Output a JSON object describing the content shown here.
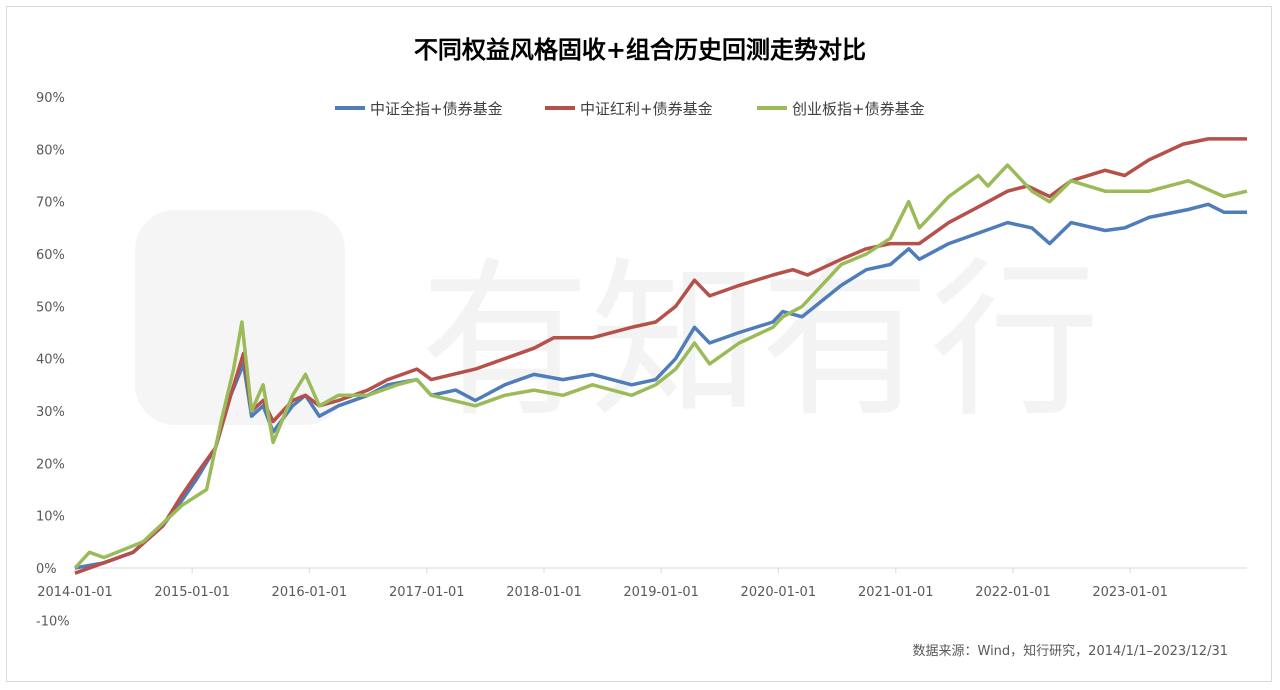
{
  "chart_data": {
    "type": "line",
    "title": "不同权益风格固收+组合历史回测走势对比",
    "xlabel": "",
    "ylabel": "",
    "x_ticks": [
      "2014-01-01",
      "2015-01-01",
      "2016-01-01",
      "2017-01-01",
      "2018-01-01",
      "2019-01-01",
      "2020-01-01",
      "2021-01-01",
      "2022-01-01",
      "2023-01-01"
    ],
    "y_ticks": [
      "-10%",
      "0%",
      "10%",
      "20%",
      "30%",
      "40%",
      "50%",
      "60%",
      "70%",
      "80%",
      "90%"
    ],
    "ylim": [
      -10,
      90
    ],
    "xlim": [
      "2014-01-01",
      "2023-12-31"
    ],
    "grid": false,
    "legend_position": "top",
    "watermark": "有知有行",
    "source_note": "数据来源：Wind，知行研究，2014/1/1–2023/12/31",
    "series": [
      {
        "name": "中证全指+债券基金",
        "color": "#4f7cba",
        "points": [
          [
            "2014-01-01",
            0
          ],
          [
            "2014-04-01",
            1
          ],
          [
            "2014-07-01",
            3
          ],
          [
            "2014-10-01",
            8
          ],
          [
            "2014-12-01",
            13
          ],
          [
            "2015-01-15",
            17
          ],
          [
            "2015-03-15",
            23
          ],
          [
            "2015-05-01",
            33
          ],
          [
            "2015-06-10",
            39
          ],
          [
            "2015-07-05",
            29
          ],
          [
            "2015-08-10",
            31
          ],
          [
            "2015-09-10",
            26
          ],
          [
            "2015-11-10",
            31
          ],
          [
            "2015-12-20",
            33
          ],
          [
            "2016-02-01",
            29
          ],
          [
            "2016-04-01",
            31
          ],
          [
            "2016-07-01",
            33
          ],
          [
            "2016-09-01",
            35
          ],
          [
            "2016-12-01",
            36
          ],
          [
            "2017-01-15",
            33
          ],
          [
            "2017-04-01",
            34
          ],
          [
            "2017-06-01",
            32
          ],
          [
            "2017-09-01",
            35
          ],
          [
            "2017-12-01",
            37
          ],
          [
            "2018-03-01",
            36
          ],
          [
            "2018-06-01",
            37
          ],
          [
            "2018-10-01",
            35
          ],
          [
            "2018-12-15",
            36
          ],
          [
            "2019-02-15",
            40
          ],
          [
            "2019-04-15",
            46
          ],
          [
            "2019-06-01",
            43
          ],
          [
            "2019-09-01",
            45
          ],
          [
            "2019-12-15",
            47
          ],
          [
            "2020-01-15",
            49
          ],
          [
            "2020-03-15",
            48
          ],
          [
            "2020-07-15",
            54
          ],
          [
            "2020-10-01",
            57
          ],
          [
            "2020-12-15",
            58
          ],
          [
            "2021-02-10",
            61
          ],
          [
            "2021-03-15",
            59
          ],
          [
            "2021-06-15",
            62
          ],
          [
            "2021-09-15",
            64
          ],
          [
            "2021-12-15",
            66
          ],
          [
            "2022-03-01",
            65
          ],
          [
            "2022-04-25",
            62
          ],
          [
            "2022-07-01",
            66
          ],
          [
            "2022-10-15",
            64.5
          ],
          [
            "2022-12-15",
            65
          ],
          [
            "2023-03-01",
            67
          ],
          [
            "2023-07-01",
            68.5
          ],
          [
            "2023-09-01",
            69.5
          ],
          [
            "2023-10-20",
            68
          ],
          [
            "2023-12-31",
            68
          ]
        ]
      },
      {
        "name": "中证红利+债券基金",
        "color": "#b5504a",
        "points": [
          [
            "2014-01-01",
            -1
          ],
          [
            "2014-04-01",
            1
          ],
          [
            "2014-07-01",
            3
          ],
          [
            "2014-10-01",
            8
          ],
          [
            "2014-12-01",
            14
          ],
          [
            "2015-01-15",
            18
          ],
          [
            "2015-03-15",
            23
          ],
          [
            "2015-05-01",
            33
          ],
          [
            "2015-06-10",
            41
          ],
          [
            "2015-07-05",
            30
          ],
          [
            "2015-08-10",
            32
          ],
          [
            "2015-09-10",
            28
          ],
          [
            "2015-11-10",
            32
          ],
          [
            "2015-12-20",
            33
          ],
          [
            "2016-02-01",
            31
          ],
          [
            "2016-04-01",
            32
          ],
          [
            "2016-07-01",
            34
          ],
          [
            "2016-09-01",
            36
          ],
          [
            "2016-12-01",
            38
          ],
          [
            "2017-01-15",
            36
          ],
          [
            "2017-06-01",
            38
          ],
          [
            "2017-12-01",
            42
          ],
          [
            "2018-02-01",
            44
          ],
          [
            "2018-06-01",
            44
          ],
          [
            "2018-10-01",
            46
          ],
          [
            "2018-12-15",
            47
          ],
          [
            "2019-02-15",
            50
          ],
          [
            "2019-04-15",
            55
          ],
          [
            "2019-06-01",
            52
          ],
          [
            "2019-09-01",
            54
          ],
          [
            "2019-12-15",
            56
          ],
          [
            "2020-02-15",
            57
          ],
          [
            "2020-04-01",
            56
          ],
          [
            "2020-07-15",
            59
          ],
          [
            "2020-10-01",
            61
          ],
          [
            "2020-12-15",
            62
          ],
          [
            "2021-03-15",
            62
          ],
          [
            "2021-06-15",
            66
          ],
          [
            "2021-09-15",
            69
          ],
          [
            "2021-12-15",
            72
          ],
          [
            "2022-02-15",
            73
          ],
          [
            "2022-04-25",
            71
          ],
          [
            "2022-07-01",
            74
          ],
          [
            "2022-10-15",
            76
          ],
          [
            "2022-12-15",
            75
          ],
          [
            "2023-03-01",
            78
          ],
          [
            "2023-06-15",
            81
          ],
          [
            "2023-09-01",
            82
          ],
          [
            "2023-12-31",
            82
          ]
        ]
      },
      {
        "name": "创业板指+债券基金",
        "color": "#9bbb59",
        "points": [
          [
            "2014-01-01",
            0
          ],
          [
            "2014-02-15",
            3
          ],
          [
            "2014-04-01",
            2
          ],
          [
            "2014-08-01",
            5
          ],
          [
            "2014-12-01",
            12
          ],
          [
            "2015-02-15",
            15
          ],
          [
            "2015-04-01",
            28
          ],
          [
            "2015-05-10",
            38
          ],
          [
            "2015-06-05",
            47
          ],
          [
            "2015-07-05",
            30
          ],
          [
            "2015-08-10",
            35
          ],
          [
            "2015-09-10",
            24
          ],
          [
            "2015-11-10",
            33
          ],
          [
            "2015-12-20",
            37
          ],
          [
            "2016-02-01",
            31
          ],
          [
            "2016-04-01",
            33
          ],
          [
            "2016-07-01",
            33
          ],
          [
            "2016-10-01",
            35
          ],
          [
            "2016-12-01",
            36
          ],
          [
            "2017-01-15",
            33
          ],
          [
            "2017-06-01",
            31
          ],
          [
            "2017-09-01",
            33
          ],
          [
            "2017-12-01",
            34
          ],
          [
            "2018-03-01",
            33
          ],
          [
            "2018-06-01",
            35
          ],
          [
            "2018-10-01",
            33
          ],
          [
            "2018-12-15",
            35
          ],
          [
            "2019-02-15",
            38
          ],
          [
            "2019-04-15",
            43
          ],
          [
            "2019-06-01",
            39
          ],
          [
            "2019-09-01",
            43
          ],
          [
            "2019-12-15",
            46
          ],
          [
            "2020-01-15",
            48
          ],
          [
            "2020-03-15",
            50
          ],
          [
            "2020-07-15",
            58
          ],
          [
            "2020-10-01",
            60
          ],
          [
            "2020-12-15",
            63
          ],
          [
            "2021-02-10",
            70
          ],
          [
            "2021-03-15",
            65
          ],
          [
            "2021-06-15",
            71
          ],
          [
            "2021-09-15",
            75
          ],
          [
            "2021-10-15",
            73
          ],
          [
            "2021-12-15",
            77
          ],
          [
            "2022-03-01",
            72
          ],
          [
            "2022-04-25",
            70
          ],
          [
            "2022-07-01",
            74
          ],
          [
            "2022-10-15",
            72
          ],
          [
            "2022-12-15",
            72
          ],
          [
            "2023-03-01",
            72
          ],
          [
            "2023-07-01",
            74
          ],
          [
            "2023-10-20",
            71
          ],
          [
            "2023-12-31",
            72
          ]
        ]
      }
    ]
  }
}
